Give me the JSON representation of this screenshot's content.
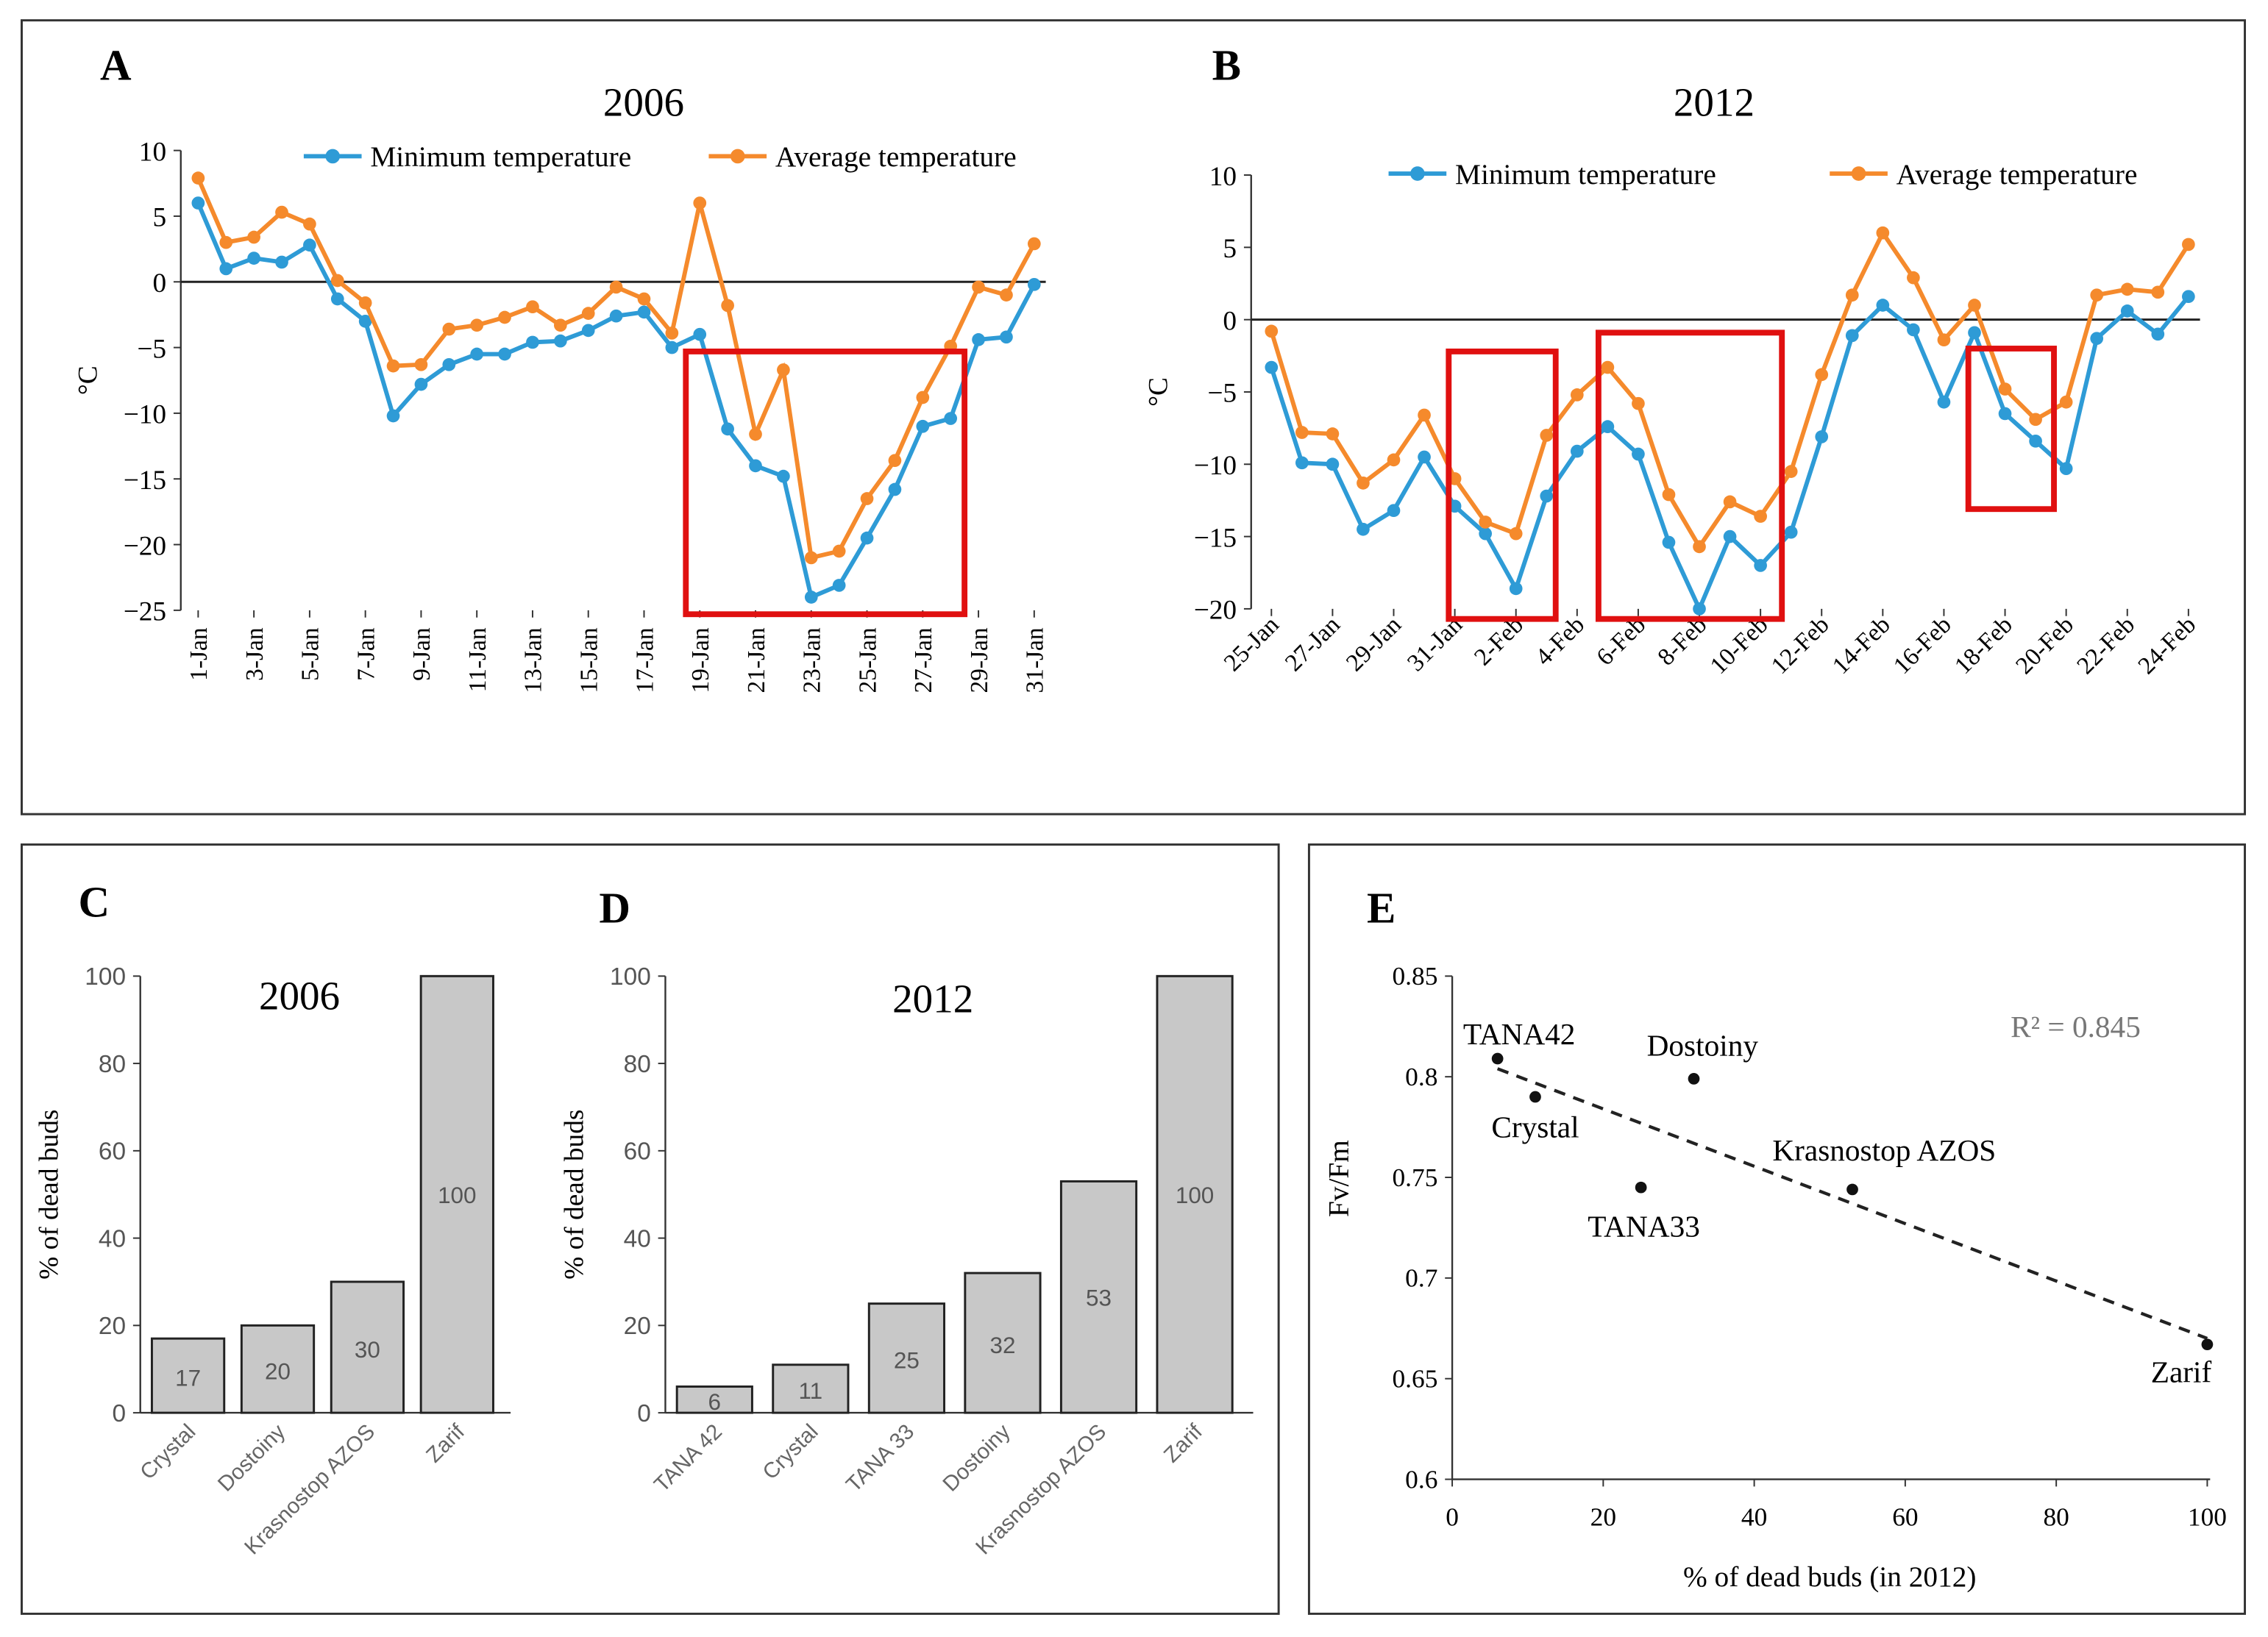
{
  "chart_data": [
    {
      "panel": "A",
      "type": "line",
      "title": "2006",
      "ylabel": "°C",
      "xlabel": "",
      "ylim": [
        -25,
        10
      ],
      "yticks": [
        10,
        5,
        0,
        -5,
        -10,
        -15,
        -20,
        -25
      ],
      "legend_position": "top",
      "x": [
        "1-Jan",
        "2-Jan",
        "3-Jan",
        "4-Jan",
        "5-Jan",
        "6-Jan",
        "7-Jan",
        "8-Jan",
        "9-Jan",
        "10-Jan",
        "11-Jan",
        "12-Jan",
        "13-Jan",
        "14-Jan",
        "15-Jan",
        "16-Jan",
        "17-Jan",
        "18-Jan",
        "19-Jan",
        "20-Jan",
        "21-Jan",
        "22-Jan",
        "23-Jan",
        "24-Jan",
        "25-Jan",
        "26-Jan",
        "27-Jan",
        "28-Jan",
        "29-Jan",
        "30-Jan",
        "31-Jan"
      ],
      "tick_labels": [
        "1-Jan",
        "3-Jan",
        "5-Jan",
        "7-Jan",
        "9-Jan",
        "11-Jan",
        "13-Jan",
        "15-Jan",
        "17-Jan",
        "19-Jan",
        "21-Jan",
        "23-Jan",
        "25-Jan",
        "27-Jan",
        "29-Jan",
        "31-Jan"
      ],
      "series": [
        {
          "name": "Minimum temperature",
          "color": "#2e9bd6",
          "values": [
            6,
            1,
            1.8,
            1.5,
            2.8,
            -1.3,
            -3,
            -10.2,
            -7.8,
            -6.3,
            -5.5,
            -5.5,
            -4.6,
            -4.5,
            -3.7,
            -2.6,
            -2.3,
            -5,
            -4,
            -11.2,
            -14,
            -14.8,
            -24,
            -23.1,
            -19.5,
            -15.8,
            -11,
            -10.4,
            -4.4,
            -4.2,
            -0.2
          ]
        },
        {
          "name": "Average temperature",
          "color": "#f58a2c",
          "values": [
            7.9,
            3,
            3.4,
            5.3,
            4.4,
            0.1,
            -1.6,
            -6.4,
            -6.3,
            -3.6,
            -3.3,
            -2.7,
            -1.9,
            -3.3,
            -2.4,
            -0.4,
            -1.3,
            -3.9,
            6,
            -1.8,
            -11.6,
            -6.7,
            -21,
            -20.5,
            -16.5,
            -13.6,
            -8.8,
            -4.9,
            -0.4,
            -1,
            2.9
          ]
        }
      ],
      "highlight_boxes": [
        {
          "from_day_index": 17.5,
          "to_day_index": 27.5,
          "y_from": -5.3,
          "y_to": -25.3,
          "color": "#e01010"
        }
      ]
    },
    {
      "panel": "B",
      "type": "line",
      "title": "2012",
      "ylabel": "°C",
      "xlabel": "",
      "ylim": [
        -20,
        10
      ],
      "yticks": [
        10,
        5,
        0,
        -5,
        -10,
        -15,
        -20
      ],
      "legend_position": "top",
      "x": [
        "25-Jan",
        "26-Jan",
        "27-Jan",
        "28-Jan",
        "29-Jan",
        "30-Jan",
        "31-Jan",
        "1-Feb",
        "2-Feb",
        "3-Feb",
        "4-Feb",
        "5-Feb",
        "6-Feb",
        "7-Feb",
        "8-Feb",
        "9-Feb",
        "10-Feb",
        "11-Feb",
        "12-Feb",
        "13-Feb",
        "14-Feb",
        "15-Feb",
        "16-Feb",
        "17-Feb",
        "18-Feb",
        "19-Feb",
        "20-Feb",
        "21-Feb",
        "22-Feb",
        "23-Feb",
        "24-Feb"
      ],
      "tick_labels": [
        "25-Jan",
        "27-Jan",
        "29-Jan",
        "31-Jan",
        "2-Feb",
        "4-Feb",
        "6-Feb",
        "8-Feb",
        "10-Feb",
        "12-Feb",
        "14-Feb",
        "16-Feb",
        "18-Feb",
        "20-Feb",
        "22-Feb",
        "24-Feb"
      ],
      "series": [
        {
          "name": "Minimum temperature",
          "color": "#2e9bd6",
          "values": [
            -3.3,
            -9.9,
            -10,
            -14.5,
            -13.2,
            -9.5,
            -12.9,
            -14.8,
            -18.6,
            -12.2,
            -9.1,
            -7.4,
            -9.3,
            -15.4,
            -20,
            -15,
            -17,
            -14.7,
            -8.1,
            -1.1,
            1,
            -0.7,
            -5.7,
            -0.9,
            -6.5,
            -8.4,
            -10.3,
            -1.3,
            0.6,
            -1,
            1.6
          ]
        },
        {
          "name": "Average temperature",
          "color": "#f58a2c",
          "values": [
            -0.8,
            -7.8,
            -7.9,
            -11.3,
            -9.7,
            -6.6,
            -11,
            -14,
            -14.8,
            -8,
            -5.2,
            -3.3,
            -5.8,
            -12.1,
            -15.7,
            -12.6,
            -13.6,
            -10.5,
            -3.8,
            1.7,
            6,
            2.9,
            -1.4,
            1,
            -4.8,
            -6.9,
            -5.7,
            1.7,
            2.1,
            1.9,
            5.2
          ]
        }
      ],
      "highlight_boxes": [
        {
          "from_day_index": 5.8,
          "to_day_index": 9.3,
          "y_from": -2.2,
          "y_to": -20.7,
          "color": "#e01010"
        },
        {
          "from_day_index": 10.7,
          "to_day_index": 16.7,
          "y_from": -0.9,
          "y_to": -20.7,
          "color": "#e01010"
        },
        {
          "from_day_index": 22.8,
          "to_day_index": 25.6,
          "y_from": -2,
          "y_to": -13.1,
          "color": "#e01010"
        }
      ]
    },
    {
      "panel": "C",
      "type": "bar",
      "title": "2006",
      "ylabel": "% of dead buds",
      "ylim": [
        0,
        100
      ],
      "yticks": [
        0,
        20,
        40,
        60,
        80,
        100
      ],
      "categories": [
        "Crystal",
        "Dostoiny",
        "Krasnostop AZOS",
        "Zarif"
      ],
      "values": [
        17,
        20,
        30,
        100
      ],
      "data_labels": [
        "17",
        "20",
        "30",
        "100"
      ],
      "color": "#c8c8c8"
    },
    {
      "panel": "D",
      "type": "bar",
      "title": "2012",
      "ylabel": "% of dead buds",
      "ylim": [
        0,
        100
      ],
      "yticks": [
        0,
        20,
        40,
        60,
        80,
        100
      ],
      "categories": [
        "TANA 42",
        "Crystal",
        "TANA 33",
        "Dostoiny",
        "Krasnostop AZOS",
        "Zarif"
      ],
      "values": [
        6,
        11,
        25,
        32,
        53,
        100
      ],
      "data_labels": [
        "6",
        "11",
        "25",
        "32",
        "53",
        "100"
      ],
      "color": "#c8c8c8"
    },
    {
      "panel": "E",
      "type": "scatter",
      "title": "",
      "xlabel": "% of dead buds (in 2012)",
      "ylabel": "Fv/Fm",
      "xlim": [
        0,
        100
      ],
      "ylim": [
        0.6,
        0.85
      ],
      "xticks": [
        "0",
        "20",
        "40",
        "60",
        "80",
        "100"
      ],
      "yticks": [
        "0.85",
        "0.8",
        "0.75",
        "0.7",
        "0.65",
        "0.6"
      ],
      "points": [
        {
          "label": "TANA42",
          "x": 6,
          "y": 0.809
        },
        {
          "label": "Crystal",
          "x": 11,
          "y": 0.79
        },
        {
          "label": "TANA33",
          "x": 25,
          "y": 0.745
        },
        {
          "label": "Dostoiny",
          "x": 32,
          "y": 0.799
        },
        {
          "label": "Krasnostop AZOS",
          "x": 53,
          "y": 0.744
        },
        {
          "label": "Zarif",
          "x": 100,
          "y": 0.667
        }
      ],
      "trendline": {
        "type": "linear",
        "from": [
          6,
          0.804
        ],
        "to": [
          100,
          0.67
        ],
        "style": "dashed"
      },
      "annotation": "R² = 0.845"
    }
  ]
}
